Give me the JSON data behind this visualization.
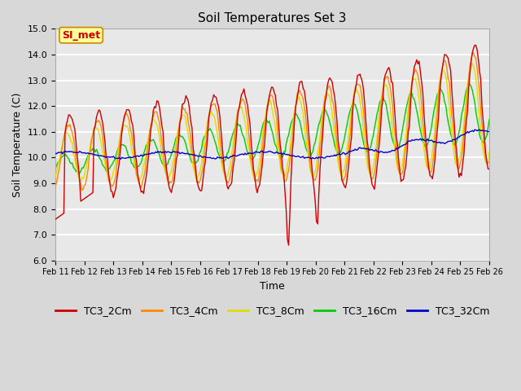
{
  "title": "Soil Temperatures Set 3",
  "xlabel": "Time",
  "ylabel": "Soil Temperature (C)",
  "ylim": [
    6.0,
    15.0
  ],
  "yticks": [
    6.0,
    7.0,
    8.0,
    9.0,
    10.0,
    11.0,
    12.0,
    13.0,
    14.0,
    15.0
  ],
  "xtick_labels": [
    "Feb 11",
    "Feb 12",
    "Feb 13",
    "Feb 14",
    "Feb 15",
    "Feb 16",
    "Feb 17",
    "Feb 18",
    "Feb 19",
    "Feb 20",
    "Feb 21",
    "Feb 22",
    "Feb 23",
    "Feb 24",
    "Feb 25",
    "Feb 26"
  ],
  "series_colors": [
    "#cc0000",
    "#ff8800",
    "#dddd00",
    "#00cc00",
    "#0000cc"
  ],
  "series_names": [
    "TC3_2Cm",
    "TC3_4Cm",
    "TC3_8Cm",
    "TC3_16Cm",
    "TC3_32Cm"
  ],
  "annotation_text": "SI_met",
  "annotation_bg": "#ffff99",
  "annotation_border": "#cc8800",
  "fig_bg": "#d8d8d8",
  "plot_bg": "#e8e8e8",
  "grid_color": "#ffffff",
  "title_fontsize": 11,
  "tick_fontsize": 8,
  "legend_fontsize": 9
}
